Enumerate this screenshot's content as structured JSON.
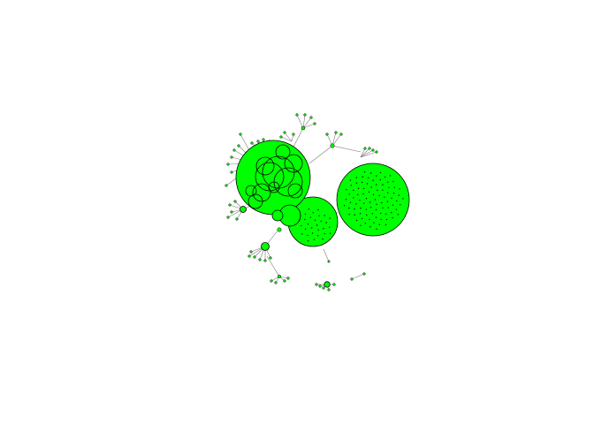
{
  "figure": {
    "type": "network-graph",
    "node_fill": "#00ff00",
    "node_stroke": "#000000",
    "edge_color": "#7a7a7a",
    "background": "#ffffff",
    "labels_shown": false
  }
}
